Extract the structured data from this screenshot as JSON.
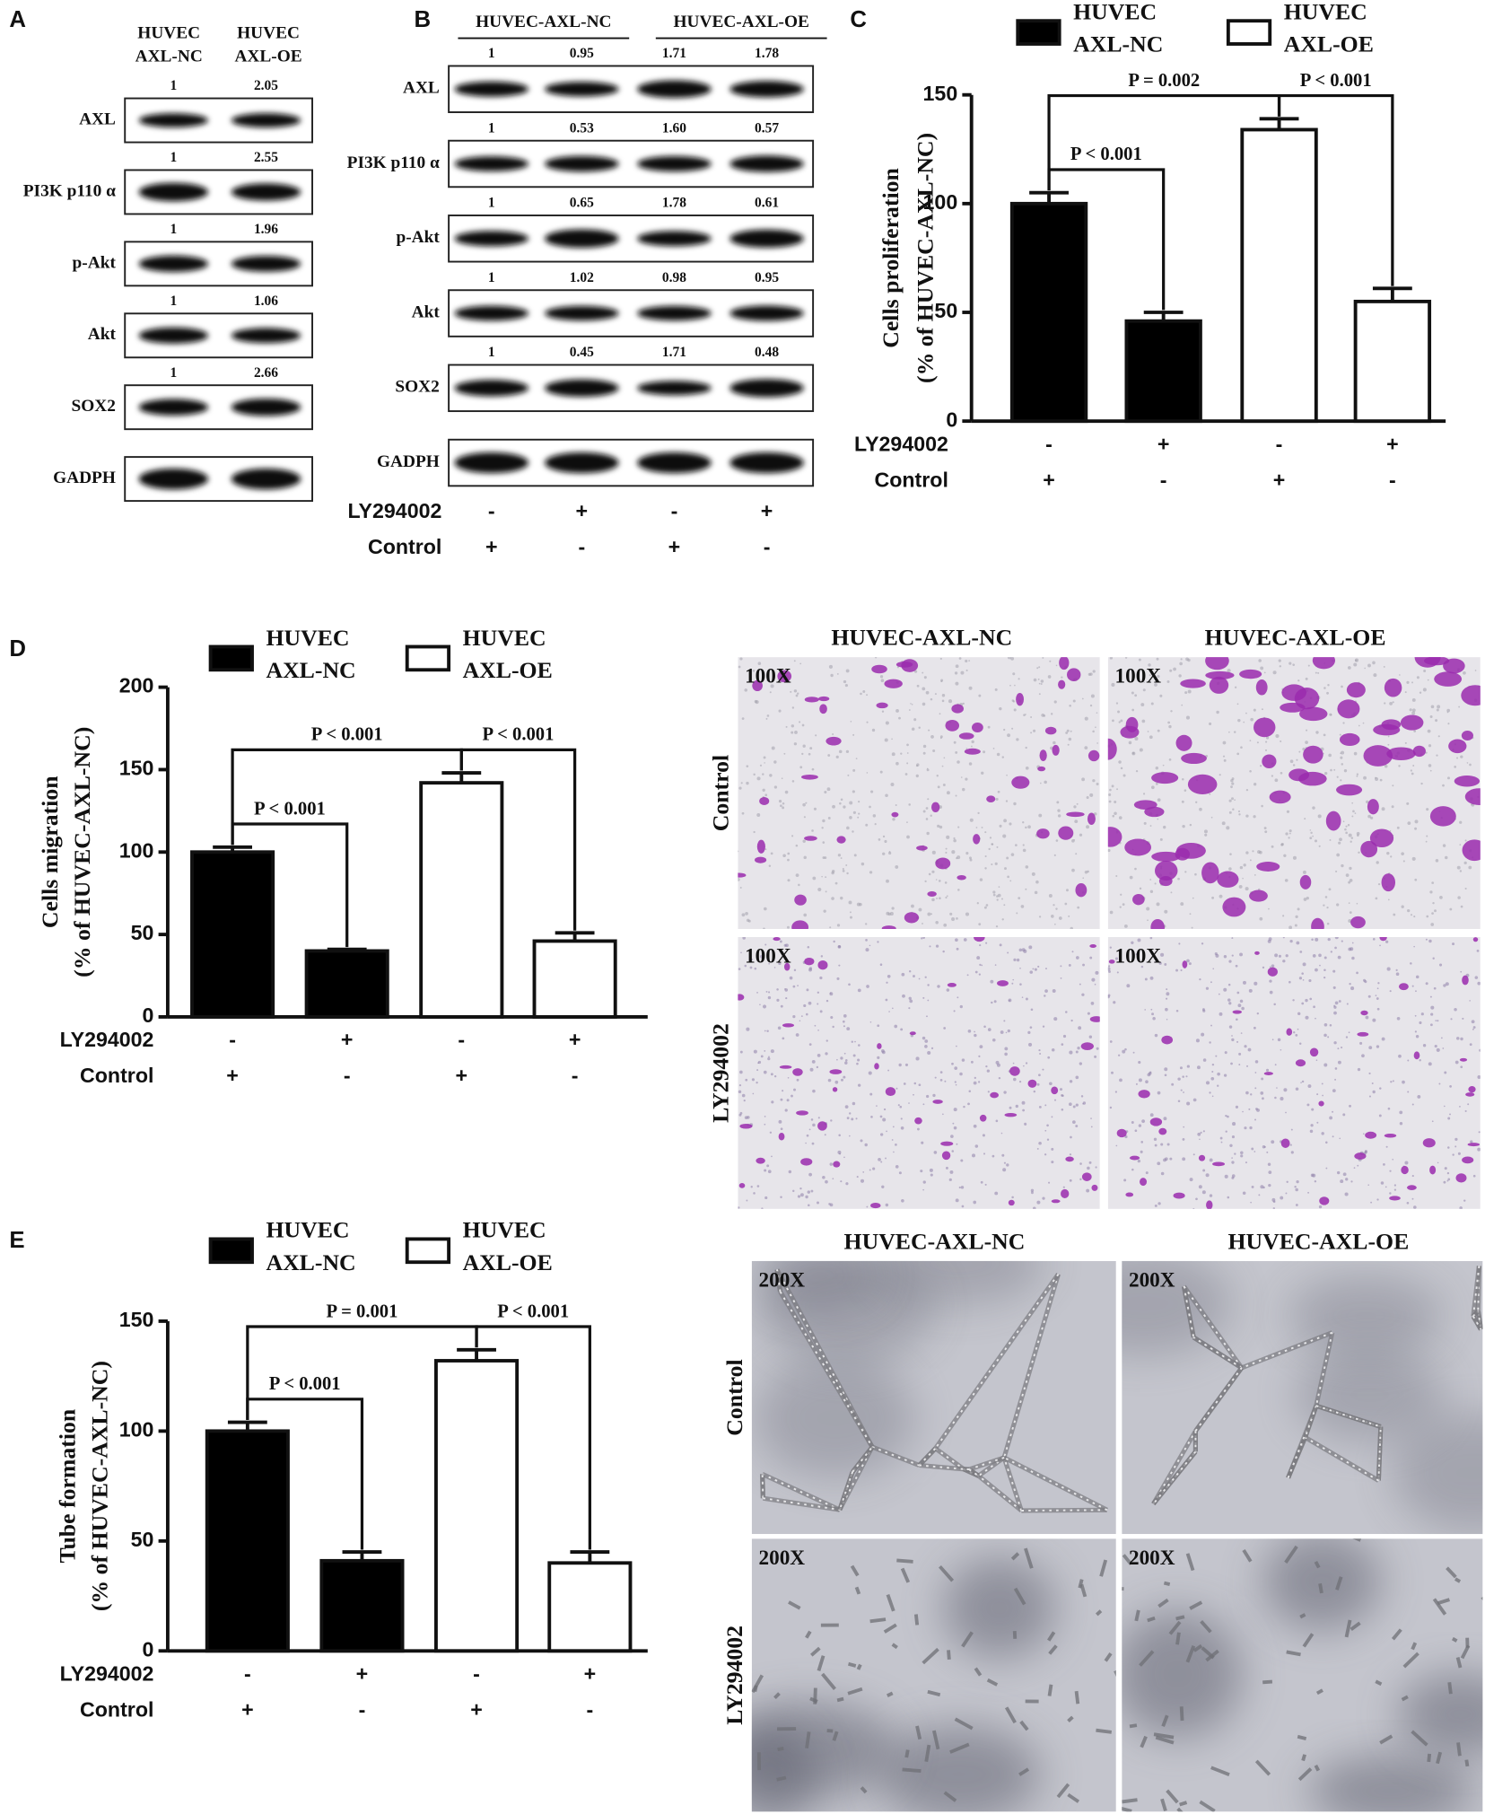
{
  "panel_labels": [
    "A",
    "B",
    "C",
    "D",
    "E"
  ],
  "blot_a": {
    "columns": [
      "HUVEC AXL-NC",
      "HUVEC AXL-OE"
    ],
    "rows": [
      {
        "name": "AXL",
        "values": [
          "1",
          "2.05"
        ]
      },
      {
        "name": "PI3K p110 α",
        "values": [
          "1",
          "2.55"
        ]
      },
      {
        "name": "p-Akt",
        "values": [
          "1",
          "1.96"
        ]
      },
      {
        "name": "Akt",
        "values": [
          "1",
          "1.06"
        ]
      },
      {
        "name": "SOX2",
        "values": [
          "1",
          "2.66"
        ]
      },
      {
        "name": "GADPH",
        "values": []
      }
    ]
  },
  "blot_b": {
    "columns": [
      "HUVEC-AXL-NC",
      "HUVEC-AXL-OE"
    ],
    "rows": [
      {
        "name": "AXL",
        "values": [
          "1",
          "0.95",
          "1.71",
          "1.78"
        ]
      },
      {
        "name": "PI3K p110 α",
        "values": [
          "1",
          "0.53",
          "1.60",
          "0.57"
        ]
      },
      {
        "name": "p-Akt",
        "values": [
          "1",
          "0.65",
          "1.78",
          "0.61"
        ]
      },
      {
        "name": "Akt",
        "values": [
          "1",
          "1.02",
          "0.98",
          "0.95"
        ]
      },
      {
        "name": "SOX2",
        "values": [
          "1",
          "0.45",
          "1.71",
          "0.48"
        ]
      },
      {
        "name": "GADPH",
        "values": []
      }
    ],
    "treatments": [
      {
        "name": "LY294002",
        "labels": [
          "-",
          "+",
          "-",
          "+"
        ]
      },
      {
        "name": "Control",
        "labels": [
          "+",
          "-",
          "+",
          "-"
        ]
      }
    ]
  },
  "chart_data": [
    {
      "type": "bar",
      "ylabel": [
        "Cells proliferation",
        "(% of  HUVEC-AXL-NC)"
      ],
      "ylim": [
        0,
        150
      ],
      "yticks": [
        0,
        50,
        100,
        150
      ],
      "series": [
        {
          "name": "HUVEC AXL-NC",
          "color": "#000000",
          "values": [
            100,
            46,
            null,
            null
          ],
          "errors": [
            5,
            4,
            null,
            null
          ]
        },
        {
          "name": "HUVEC AXL-OE",
          "color": "#ffffff",
          "values": [
            null,
            null,
            134,
            55
          ],
          "errors": [
            null,
            null,
            5,
            6
          ]
        }
      ],
      "treatments": [
        {
          "name": "LY294002",
          "labels": [
            "-",
            "+",
            "-",
            "+"
          ]
        },
        {
          "name": "Control",
          "labels": [
            "+",
            "-",
            "+",
            "-"
          ]
        }
      ],
      "annotations": [
        {
          "text": "P = 0.002"
        },
        {
          "text": "P < 0.001"
        },
        {
          "text": "P < 0.001"
        }
      ]
    },
    {
      "type": "bar",
      "ylabel": [
        "Cells migration",
        "(% of  HUVEC-AXL-NC)"
      ],
      "ylim": [
        0,
        200
      ],
      "yticks": [
        0,
        50,
        100,
        150,
        200
      ],
      "series": [
        {
          "name": "HUVEC AXL-NC",
          "color": "#000000",
          "values": [
            100,
            40,
            null,
            null
          ],
          "errors": [
            3,
            1,
            null,
            null
          ]
        },
        {
          "name": "HUVEC AXL-OE",
          "color": "#ffffff",
          "values": [
            null,
            null,
            142,
            46
          ],
          "errors": [
            null,
            null,
            6,
            5
          ]
        }
      ],
      "treatments": [
        {
          "name": "LY294002",
          "labels": [
            "-",
            "+",
            "-",
            "+"
          ]
        },
        {
          "name": "Control",
          "labels": [
            "+",
            "-",
            "+",
            "-"
          ]
        }
      ],
      "annotations": [
        {
          "text": "P < 0.001"
        },
        {
          "text": "P < 0.001"
        },
        {
          "text": "P < 0.001"
        }
      ]
    },
    {
      "type": "bar",
      "ylabel": [
        "Tube formation",
        "(% of  HUVEC-AXL-NC)"
      ],
      "ylim": [
        0,
        150
      ],
      "yticks": [
        0,
        50,
        100,
        150
      ],
      "series": [
        {
          "name": "HUVEC AXL-NC",
          "color": "#000000",
          "values": [
            100,
            41,
            null,
            null
          ],
          "errors": [
            4,
            4,
            null,
            null
          ]
        },
        {
          "name": "HUVEC AXL-OE",
          "color": "#ffffff",
          "values": [
            null,
            null,
            132,
            40
          ],
          "errors": [
            null,
            null,
            5,
            5
          ]
        }
      ],
      "treatments": [
        {
          "name": "LY294002",
          "labels": [
            "-",
            "+",
            "-",
            "+"
          ]
        },
        {
          "name": "Control",
          "labels": [
            "+",
            "-",
            "+",
            "-"
          ]
        }
      ],
      "annotations": [
        {
          "text": "P = 0.001"
        },
        {
          "text": "P < 0.001"
        },
        {
          "text": "P < 0.001"
        }
      ]
    }
  ],
  "micrographs_d": {
    "columns": [
      "HUVEC-AXL-NC",
      "HUVEC-AXL-OE"
    ],
    "rows": [
      "Control",
      "LY294002"
    ],
    "magnification": [
      "100X",
      "100X",
      "100X",
      "100X"
    ]
  },
  "micrographs_e": {
    "columns": [
      "HUVEC-AXL-NC",
      "HUVEC-AXL-OE"
    ],
    "rows": [
      "Control",
      "LY294002"
    ],
    "magnification": [
      "200X",
      "200X",
      "200X",
      "200X"
    ]
  }
}
